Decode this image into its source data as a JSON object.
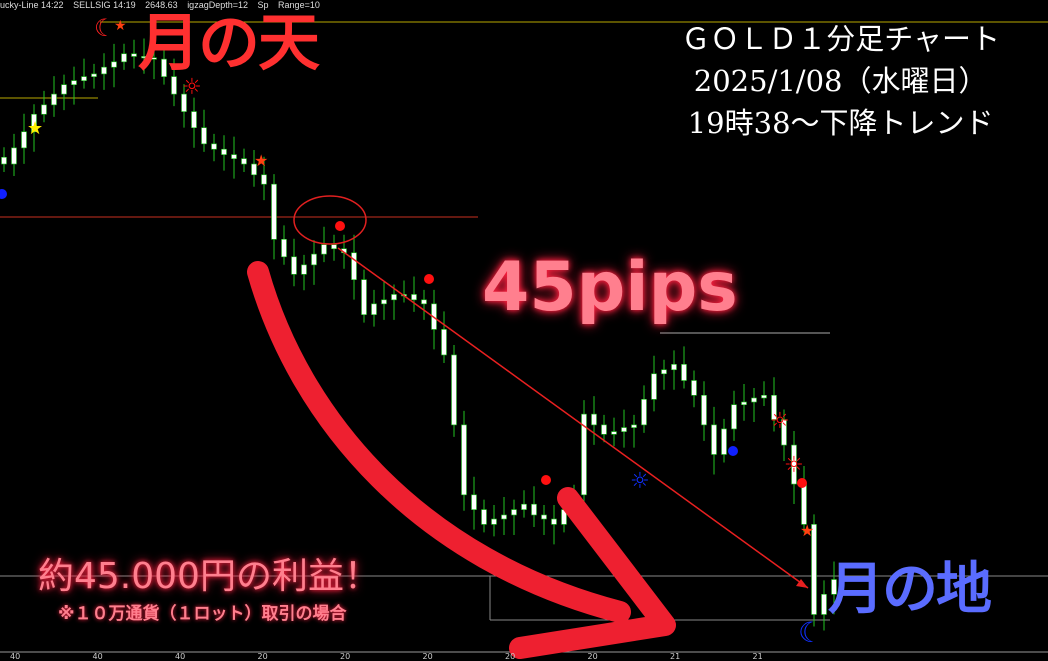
{
  "status_bar": [
    "ucky-Line 14:22",
    "SELLSIG 14:19",
    "2648.63",
    "igzagDepth=12",
    "Sp",
    "Range=10"
  ],
  "title": {
    "line1": "ＧＯＬＤ１分足チャート",
    "line2": "2025/1/08（水曜日）",
    "line3": "19時38～下降トレンド"
  },
  "annotations": {
    "sky": "月の天",
    "earth": "月の地",
    "pips": "45pips",
    "profit": "約45.000円の利益！",
    "note": "※１０万通貨（１ロット）取引の場合"
  },
  "colors": {
    "background": "#000000",
    "wick": "#22c322",
    "body": "#ffffff",
    "arrow": "#ee2a2a",
    "sky_text": "#ff3030",
    "earth_text": "#5a6cff",
    "glow_text": "#ff7f8e"
  },
  "chart_data": {
    "type": "candlestick",
    "x_tick_labels": [
      "40",
      "40",
      "40",
      "20",
      "20",
      "20",
      "20",
      "20",
      "21",
      "21"
    ],
    "closes": [
      2647.96,
      2648.08,
      2648.2,
      2648.33,
      2648.4,
      2648.48,
      2648.55,
      2648.58,
      2648.61,
      2648.63,
      2648.68,
      2648.72,
      2648.78,
      2648.76,
      2648.75,
      2648.74,
      2648.61,
      2648.48,
      2648.35,
      2648.23,
      2648.11,
      2648.07,
      2648.03,
      2648.0,
      2647.96,
      2647.88,
      2647.81,
      2647.4,
      2647.27,
      2647.14,
      2647.21,
      2647.29,
      2647.36,
      2647.33,
      2647.3,
      2647.1,
      2646.84,
      2646.92,
      2646.95,
      2646.99,
      2646.99,
      2646.95,
      2646.92,
      2646.73,
      2646.54,
      2646.02,
      2645.5,
      2645.39,
      2645.28,
      2645.32,
      2645.35,
      2645.39,
      2645.43,
      2645.35,
      2645.32,
      2645.28,
      2645.39,
      2645.5,
      2646.1,
      2646.02,
      2645.95,
      2645.97,
      2646.0,
      2646.02,
      2646.21,
      2646.4,
      2646.43,
      2646.47,
      2646.35,
      2646.24,
      2646.02,
      2645.8,
      2645.99,
      2646.17,
      2646.19,
      2646.22,
      2646.24,
      2646.06,
      2645.87,
      2645.58,
      2645.28,
      2644.61,
      2644.76,
      2644.87
    ],
    "ylim": [
      2644.45,
      2649.15
    ],
    "icons": [
      "moon-red-icon",
      "star-yellow-icon",
      "star-red-icon",
      "sun-red-icon",
      "sun-blue-icon",
      "dot-red-icon",
      "dot-blue-icon",
      "moon-blue-icon"
    ]
  }
}
